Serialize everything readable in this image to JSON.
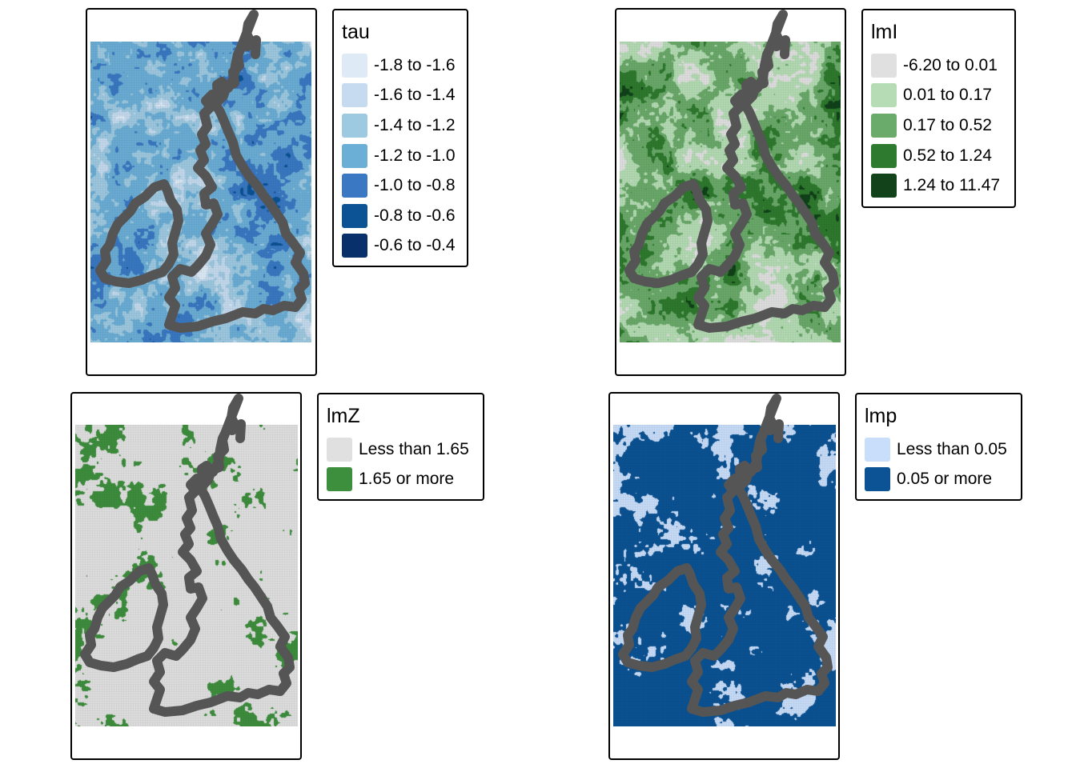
{
  "panels": [
    {
      "id": "tau",
      "legend": {
        "title": "tau",
        "items": [
          {
            "label": "-1.8 to -1.6",
            "color": "#deebf7"
          },
          {
            "label": "-1.6 to -1.4",
            "color": "#c6dbef"
          },
          {
            "label": "-1.4 to -1.2",
            "color": "#9ecae1"
          },
          {
            "label": "-1.2 to -1.0",
            "color": "#6baed6"
          },
          {
            "label": "-1.0 to -0.8",
            "color": "#3a78c4"
          },
          {
            "label": "-0.8 to -0.6",
            "color": "#0b5394"
          },
          {
            "label": "-0.6 to -0.4",
            "color": "#08306b"
          }
        ]
      }
    },
    {
      "id": "lmi",
      "legend": {
        "title": "lmI",
        "items": [
          {
            "label": "-6.20 to 0.01",
            "color": "#e0e0e0"
          },
          {
            "label": "0.01 to 0.17",
            "color": "#b5dcb5"
          },
          {
            "label": "0.17 to 0.52",
            "color": "#6aaa6a"
          },
          {
            "label": "0.52 to 1.24",
            "color": "#2e7a2e"
          },
          {
            "label": "1.24 to 11.47",
            "color": "#11421a"
          }
        ]
      }
    },
    {
      "id": "lmz",
      "legend": {
        "title": "lmZ",
        "items": [
          {
            "label": "Less than 1.65",
            "color": "#e0e0e0"
          },
          {
            "label": "1.65 or more",
            "color": "#3d8f3d"
          }
        ]
      }
    },
    {
      "id": "lmp",
      "legend": {
        "title": "lmp",
        "items": [
          {
            "label": "Less than 0.05",
            "color": "#c9defa"
          },
          {
            "label": "0.05 or more",
            "color": "#0b5394"
          }
        ]
      }
    }
  ],
  "style": {
    "coastline_color": "#555555"
  }
}
